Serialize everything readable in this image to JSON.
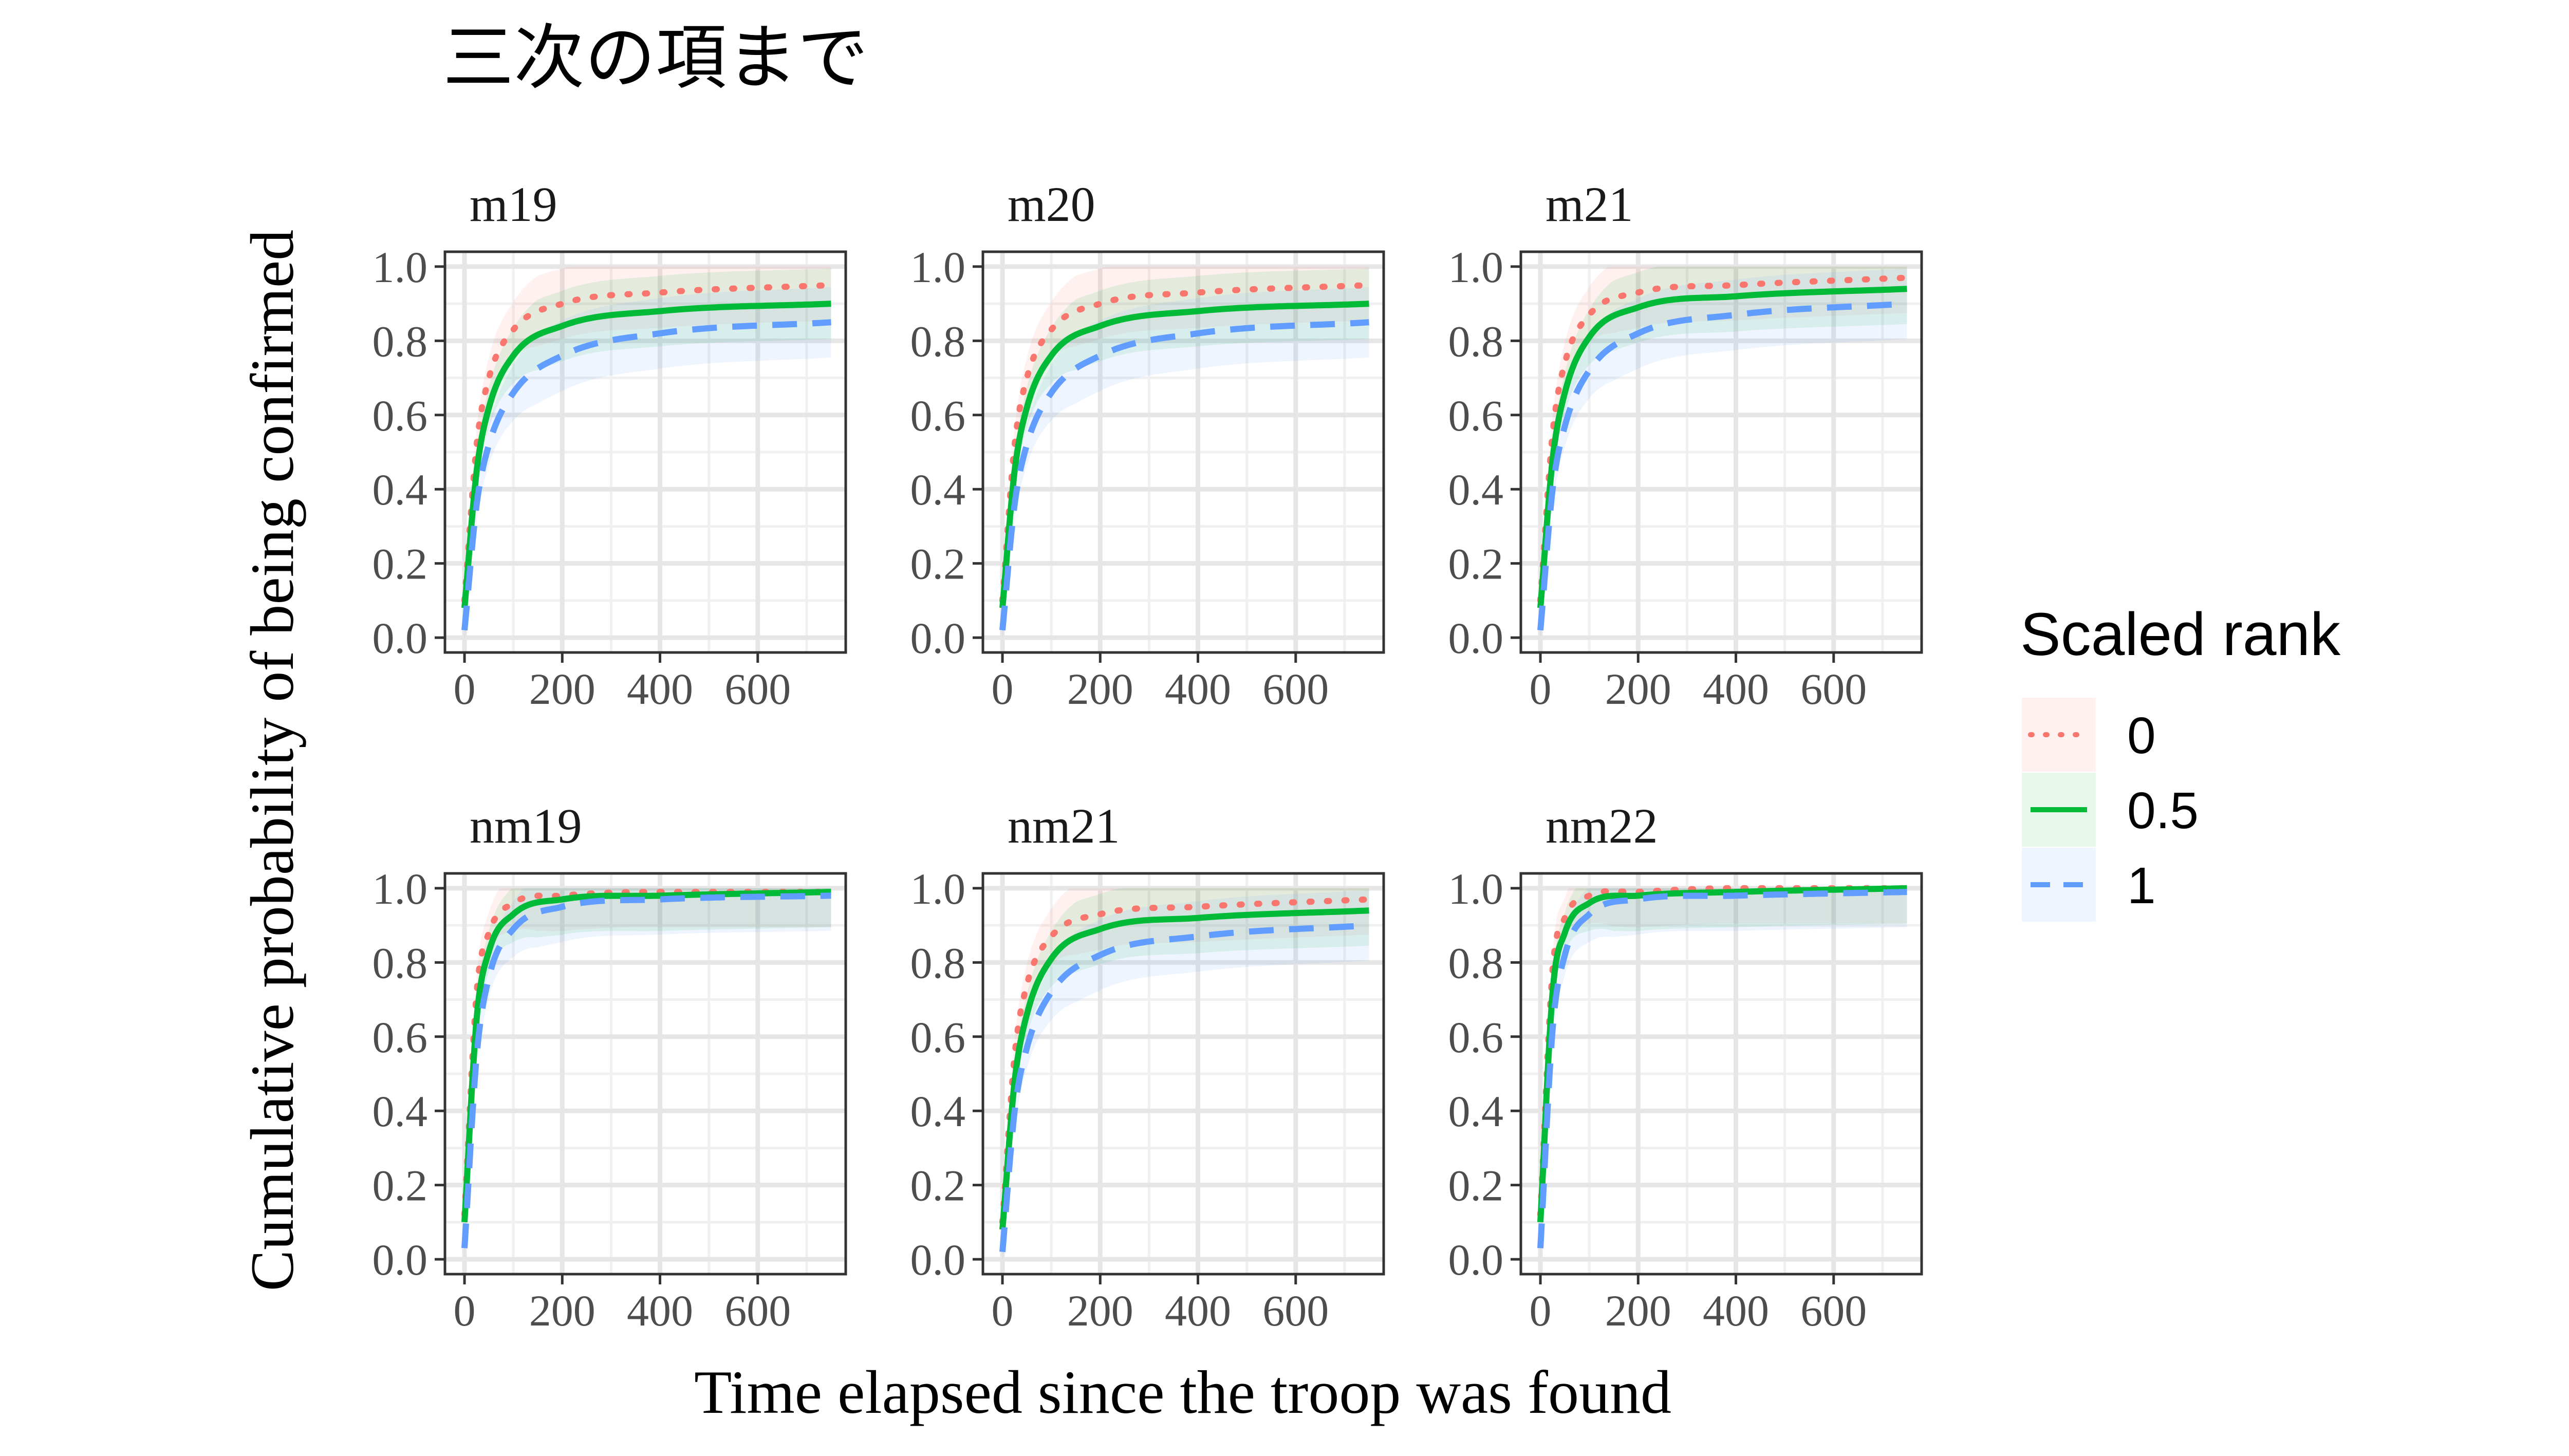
{
  "chart_data": {
    "type": "line",
    "title": "三次の項まで",
    "xlabel": "Time elapsed since the troop was found",
    "ylabel": "Cumulative probability of being confirmed",
    "xlim": [
      -40,
      780
    ],
    "ylim": [
      -0.04,
      1.04
    ],
    "x_ticks": [
      0,
      200,
      400,
      600
    ],
    "x_tick_labels": [
      "0",
      "200",
      "400",
      "600"
    ],
    "y_ticks": [
      0.0,
      0.2,
      0.4,
      0.6,
      0.8,
      1.0
    ],
    "y_tick_labels": [
      "0.0",
      "0.2",
      "0.4",
      "0.6",
      "0.8",
      "1.0"
    ],
    "grid": true,
    "legend": {
      "title": "Scaled rank",
      "position": "right",
      "entries": [
        {
          "label": "0",
          "color": "#F8766D",
          "dash": "dotted"
        },
        {
          "label": "0.5",
          "color": "#00BA38",
          "dash": "solid"
        },
        {
          "label": "1",
          "color": "#619CFF",
          "dash": "dashed"
        }
      ]
    },
    "panels": [
      {
        "label": "m19",
        "series": [
          {
            "name": "0",
            "x": [
              0,
              25,
              50,
              100,
              200,
              400,
              750
            ],
            "values": [
              0.1,
              0.52,
              0.7,
              0.83,
              0.9,
              0.93,
              0.95
            ]
          },
          {
            "name": "0.5",
            "x": [
              0,
              25,
              50,
              100,
              200,
              400,
              750
            ],
            "values": [
              0.08,
              0.45,
              0.62,
              0.76,
              0.84,
              0.88,
              0.9
            ]
          },
          {
            "name": "1",
            "x": [
              0,
              25,
              50,
              100,
              200,
              400,
              750
            ],
            "values": [
              0.02,
              0.36,
              0.52,
              0.66,
              0.76,
              0.82,
              0.85
            ]
          }
        ]
      },
      {
        "label": "m20",
        "series": [
          {
            "name": "0",
            "x": [
              0,
              25,
              50,
              100,
              200,
              400,
              750
            ],
            "values": [
              0.1,
              0.52,
              0.7,
              0.83,
              0.9,
              0.93,
              0.95
            ]
          },
          {
            "name": "0.5",
            "x": [
              0,
              25,
              50,
              100,
              200,
              400,
              750
            ],
            "values": [
              0.08,
              0.45,
              0.62,
              0.76,
              0.84,
              0.88,
              0.9
            ]
          },
          {
            "name": "1",
            "x": [
              0,
              25,
              50,
              100,
              200,
              400,
              750
            ],
            "values": [
              0.02,
              0.36,
              0.52,
              0.66,
              0.76,
              0.82,
              0.85
            ]
          }
        ]
      },
      {
        "label": "m21",
        "series": [
          {
            "name": "0",
            "x": [
              0,
              25,
              50,
              100,
              200,
              400,
              750
            ],
            "values": [
              0.1,
              0.55,
              0.74,
              0.87,
              0.93,
              0.95,
              0.97
            ]
          },
          {
            "name": "0.5",
            "x": [
              0,
              25,
              50,
              100,
              200,
              400,
              750
            ],
            "values": [
              0.08,
              0.48,
              0.66,
              0.81,
              0.89,
              0.92,
              0.94
            ]
          },
          {
            "name": "1",
            "x": [
              0,
              25,
              50,
              100,
              200,
              400,
              750
            ],
            "values": [
              0.02,
              0.4,
              0.57,
              0.72,
              0.82,
              0.87,
              0.9
            ]
          }
        ]
      },
      {
        "label": "nm19",
        "series": [
          {
            "name": "0",
            "x": [
              0,
              25,
              50,
              100,
              200,
              400,
              750
            ],
            "values": [
              0.12,
              0.72,
              0.88,
              0.96,
              0.98,
              0.99,
              0.99
            ]
          },
          {
            "name": "0.5",
            "x": [
              0,
              25,
              50,
              100,
              200,
              400,
              750
            ],
            "values": [
              0.1,
              0.65,
              0.83,
              0.93,
              0.97,
              0.98,
              0.99
            ]
          },
          {
            "name": "1",
            "x": [
              0,
              25,
              50,
              100,
              200,
              400,
              750
            ],
            "values": [
              0.03,
              0.55,
              0.76,
              0.89,
              0.95,
              0.97,
              0.98
            ]
          }
        ]
      },
      {
        "label": "nm21",
        "series": [
          {
            "name": "0",
            "x": [
              0,
              25,
              50,
              100,
              200,
              400,
              750
            ],
            "values": [
              0.1,
              0.55,
              0.74,
              0.87,
              0.93,
              0.95,
              0.97
            ]
          },
          {
            "name": "0.5",
            "x": [
              0,
              25,
              50,
              100,
              200,
              400,
              750
            ],
            "values": [
              0.08,
              0.48,
              0.66,
              0.81,
              0.89,
              0.92,
              0.94
            ]
          },
          {
            "name": "1",
            "x": [
              0,
              25,
              50,
              100,
              200,
              400,
              750
            ],
            "values": [
              0.02,
              0.4,
              0.57,
              0.72,
              0.82,
              0.87,
              0.9
            ]
          }
        ]
      },
      {
        "label": "nm22",
        "series": [
          {
            "name": "0",
            "x": [
              0,
              25,
              50,
              100,
              200,
              400,
              750
            ],
            "values": [
              0.12,
              0.78,
              0.92,
              0.98,
              0.99,
              1.0,
              1.0
            ]
          },
          {
            "name": "0.5",
            "x": [
              0,
              25,
              50,
              100,
              200,
              400,
              750
            ],
            "values": [
              0.1,
              0.72,
              0.88,
              0.96,
              0.98,
              0.99,
              1.0
            ]
          },
          {
            "name": "1",
            "x": [
              0,
              25,
              50,
              100,
              200,
              400,
              750
            ],
            "values": [
              0.03,
              0.62,
              0.82,
              0.93,
              0.97,
              0.98,
              0.99
            ]
          }
        ]
      }
    ]
  }
}
